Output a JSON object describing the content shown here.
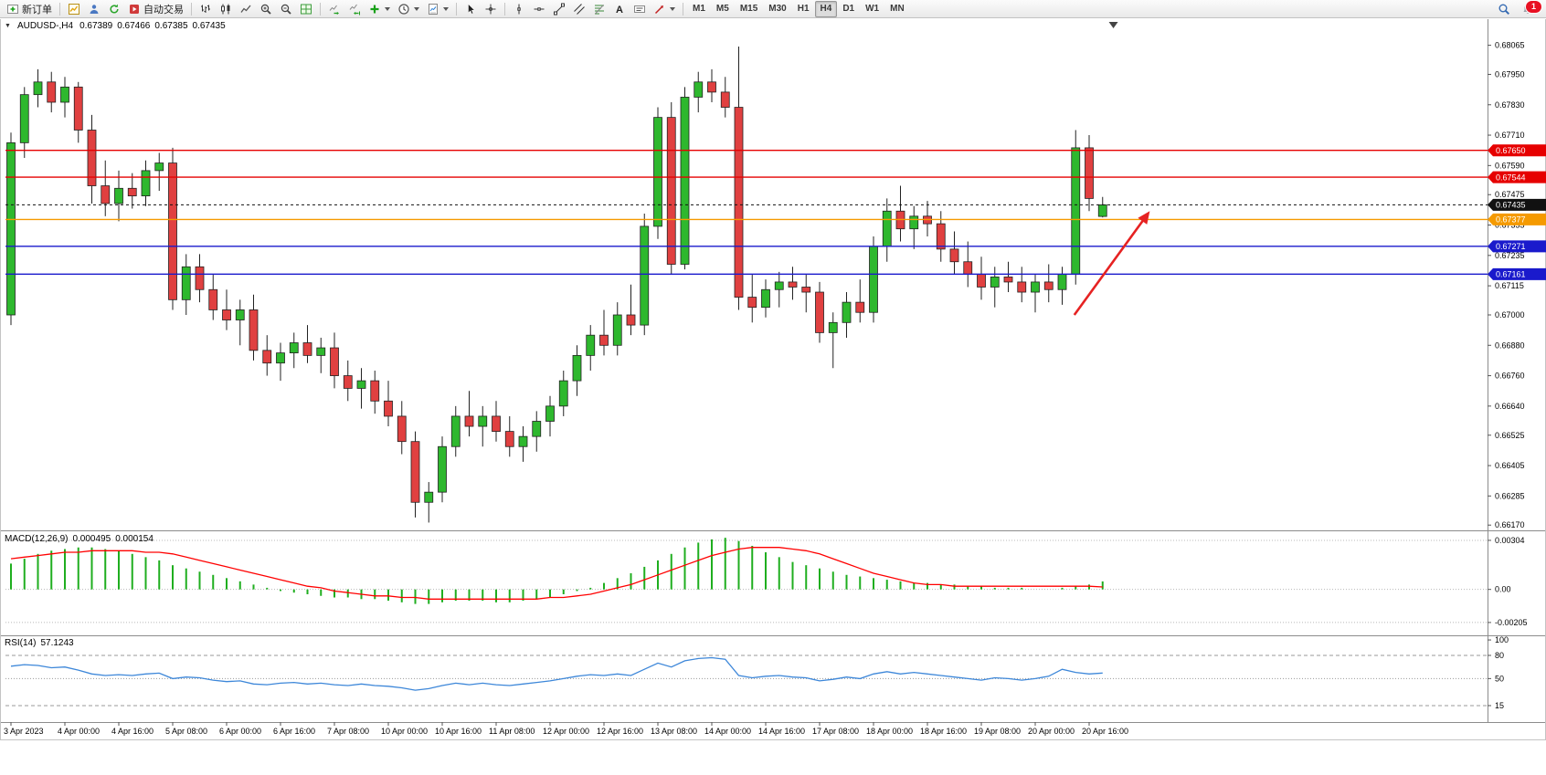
{
  "toolbar": {
    "new_order_label": "新订单",
    "auto_trading_label": "自动交易",
    "timeframes": [
      "M1",
      "M5",
      "M15",
      "M30",
      "H1",
      "H4",
      "D1",
      "W1",
      "MN"
    ],
    "active_timeframe": "H4",
    "notification_count": "1"
  },
  "icons": {
    "collapse_arrow": "▼",
    "text_tool": "A"
  },
  "chart_header": {
    "symbol": "AUDUSD-,H4",
    "open": "0.67389",
    "high": "0.67466",
    "low": "0.67385",
    "close": "0.67435"
  },
  "macd_panel": {
    "label": "MACD(12,26,9)",
    "value_main": "0.000495",
    "value_signal": "0.000154"
  },
  "rsi_panel": {
    "label": "RSI(14)",
    "value": "57.1243"
  },
  "chart_data": {
    "type": "candlestick",
    "symbol": "AUDUSD-",
    "timeframe": "H4",
    "ylim": [
      0.6616,
      0.6815
    ],
    "y_ticks": [
      "0.68065",
      "0.67950",
      "0.67830",
      "0.67710",
      "0.67590",
      "0.67475",
      "0.67355",
      "0.67235",
      "0.67115",
      "0.67000",
      "0.66880",
      "0.66760",
      "0.66640",
      "0.66525",
      "0.66405",
      "0.66285",
      "0.66170"
    ],
    "x_labels": [
      "3 Apr 2023",
      "4 Apr 00:00",
      "4 Apr 16:00",
      "5 Apr 08:00",
      "6 Apr 00:00",
      "6 Apr 16:00",
      "7 Apr 08:00",
      "10 Apr 00:00",
      "10 Apr 16:00",
      "11 Apr 08:00",
      "12 Apr 00:00",
      "12 Apr 16:00",
      "13 Apr 08:00",
      "14 Apr 00:00",
      "14 Apr 16:00",
      "17 Apr 08:00",
      "18 Apr 00:00",
      "18 Apr 16:00",
      "19 Apr 08:00",
      "20 Apr 00:00",
      "20 Apr 16:00"
    ],
    "x_label_step": 4,
    "colors": {
      "bull": "#2eb82e",
      "bear": "#e04040",
      "outline": "#222222",
      "macd_hist": "#1fae1f",
      "macd_signal": "#ff0000",
      "rsi": "#3d87d9",
      "arrow": "#e62222"
    },
    "candles": [
      [
        0.67,
        0.6772,
        0.6696,
        0.6768
      ],
      [
        0.6768,
        0.679,
        0.6762,
        0.6787
      ],
      [
        0.6787,
        0.6797,
        0.6782,
        0.6792
      ],
      [
        0.6792,
        0.6796,
        0.678,
        0.6784
      ],
      [
        0.6784,
        0.6794,
        0.6778,
        0.679
      ],
      [
        0.679,
        0.6792,
        0.6768,
        0.6773
      ],
      [
        0.6773,
        0.6779,
        0.6744,
        0.6751
      ],
      [
        0.6751,
        0.6761,
        0.6739,
        0.6744
      ],
      [
        0.6744,
        0.6757,
        0.6737,
        0.675
      ],
      [
        0.675,
        0.6756,
        0.6742,
        0.6747
      ],
      [
        0.6747,
        0.6761,
        0.6743,
        0.6757
      ],
      [
        0.6757,
        0.6764,
        0.6749,
        0.676
      ],
      [
        0.676,
        0.6766,
        0.6702,
        0.6706
      ],
      [
        0.6706,
        0.6724,
        0.67,
        0.6719
      ],
      [
        0.6719,
        0.6724,
        0.6705,
        0.671
      ],
      [
        0.671,
        0.6716,
        0.6698,
        0.6702
      ],
      [
        0.6702,
        0.671,
        0.6694,
        0.6698
      ],
      [
        0.6698,
        0.6706,
        0.6688,
        0.6702
      ],
      [
        0.6702,
        0.6708,
        0.6682,
        0.6686
      ],
      [
        0.6686,
        0.6692,
        0.6676,
        0.6681
      ],
      [
        0.6681,
        0.6689,
        0.6674,
        0.6685
      ],
      [
        0.6685,
        0.6693,
        0.6679,
        0.6689
      ],
      [
        0.6689,
        0.6696,
        0.6681,
        0.6684
      ],
      [
        0.6684,
        0.6691,
        0.6677,
        0.6687
      ],
      [
        0.6687,
        0.6693,
        0.6671,
        0.6676
      ],
      [
        0.6676,
        0.6682,
        0.6666,
        0.6671
      ],
      [
        0.6671,
        0.6679,
        0.6663,
        0.6674
      ],
      [
        0.6674,
        0.6678,
        0.6661,
        0.6666
      ],
      [
        0.6666,
        0.6674,
        0.6656,
        0.666
      ],
      [
        0.666,
        0.6666,
        0.6645,
        0.665
      ],
      [
        0.665,
        0.6654,
        0.662,
        0.6626
      ],
      [
        0.6626,
        0.6634,
        0.6618,
        0.663
      ],
      [
        0.663,
        0.6652,
        0.6626,
        0.6648
      ],
      [
        0.6648,
        0.6664,
        0.6644,
        0.666
      ],
      [
        0.666,
        0.667,
        0.6652,
        0.6656
      ],
      [
        0.6656,
        0.6664,
        0.6648,
        0.666
      ],
      [
        0.666,
        0.6666,
        0.665,
        0.6654
      ],
      [
        0.6654,
        0.666,
        0.6644,
        0.6648
      ],
      [
        0.6648,
        0.6656,
        0.6642,
        0.6652
      ],
      [
        0.6652,
        0.6662,
        0.6646,
        0.6658
      ],
      [
        0.6658,
        0.6668,
        0.6652,
        0.6664
      ],
      [
        0.6664,
        0.6678,
        0.666,
        0.6674
      ],
      [
        0.6674,
        0.6688,
        0.6668,
        0.6684
      ],
      [
        0.6684,
        0.6696,
        0.6678,
        0.6692
      ],
      [
        0.6692,
        0.6702,
        0.6684,
        0.6688
      ],
      [
        0.6688,
        0.6705,
        0.6684,
        0.67
      ],
      [
        0.67,
        0.6712,
        0.6692,
        0.6696
      ],
      [
        0.6696,
        0.674,
        0.6692,
        0.6735
      ],
      [
        0.6735,
        0.6782,
        0.673,
        0.6778
      ],
      [
        0.6778,
        0.6784,
        0.6716,
        0.672
      ],
      [
        0.672,
        0.679,
        0.6718,
        0.6786
      ],
      [
        0.6786,
        0.6796,
        0.678,
        0.6792
      ],
      [
        0.6792,
        0.6797,
        0.6784,
        0.6788
      ],
      [
        0.6788,
        0.6794,
        0.6778,
        0.6782
      ],
      [
        0.6782,
        0.6806,
        0.6702,
        0.6707
      ],
      [
        0.6707,
        0.6716,
        0.6697,
        0.6703
      ],
      [
        0.6703,
        0.6714,
        0.6699,
        0.671
      ],
      [
        0.671,
        0.6717,
        0.6703,
        0.6713
      ],
      [
        0.6713,
        0.6719,
        0.6706,
        0.6711
      ],
      [
        0.6711,
        0.6716,
        0.6701,
        0.6709
      ],
      [
        0.6709,
        0.6713,
        0.6689,
        0.6693
      ],
      [
        0.6693,
        0.6701,
        0.6679,
        0.6697
      ],
      [
        0.6697,
        0.6709,
        0.6691,
        0.6705
      ],
      [
        0.6705,
        0.6714,
        0.6697,
        0.6701
      ],
      [
        0.6701,
        0.6731,
        0.6697,
        0.6727
      ],
      [
        0.6727,
        0.6746,
        0.6721,
        0.6741
      ],
      [
        0.6741,
        0.6751,
        0.6729,
        0.6734
      ],
      [
        0.6734,
        0.6743,
        0.6726,
        0.6739
      ],
      [
        0.6739,
        0.6745,
        0.6731,
        0.6736
      ],
      [
        0.6736,
        0.6741,
        0.6721,
        0.6726
      ],
      [
        0.6726,
        0.6733,
        0.6716,
        0.6721
      ],
      [
        0.6721,
        0.6729,
        0.6711,
        0.6716
      ],
      [
        0.6716,
        0.6723,
        0.6706,
        0.6711
      ],
      [
        0.6711,
        0.6719,
        0.6703,
        0.6715
      ],
      [
        0.6715,
        0.6721,
        0.6709,
        0.6713
      ],
      [
        0.6713,
        0.6719,
        0.6705,
        0.6709
      ],
      [
        0.6709,
        0.6716,
        0.6701,
        0.6713
      ],
      [
        0.6713,
        0.672,
        0.6705,
        0.671
      ],
      [
        0.671,
        0.6719,
        0.6704,
        0.6716
      ],
      [
        0.6716,
        0.6773,
        0.6712,
        0.6766
      ],
      [
        0.6766,
        0.6771,
        0.6741,
        0.6746
      ],
      [
        0.67389,
        0.67466,
        0.67385,
        0.67435
      ]
    ],
    "hlines": [
      {
        "price": 0.6765,
        "color": "#e60000",
        "label": "0.67650",
        "style": "solid"
      },
      {
        "price": 0.67544,
        "color": "#e60000",
        "label": "0.67544",
        "style": "solid"
      },
      {
        "price": 0.67435,
        "color": "#111111",
        "label": "0.67435",
        "style": "current"
      },
      {
        "price": 0.67377,
        "color": "#f59a00",
        "label": "0.67377",
        "style": "solid"
      },
      {
        "price": 0.67271,
        "color": "#1a1acc",
        "label": "0.67271",
        "style": "solid"
      },
      {
        "price": 0.67161,
        "color": "#1a1acc",
        "label": "0.67161",
        "style": "solid"
      }
    ],
    "arrow": {
      "from": {
        "index": 78.9,
        "price": 0.67
      },
      "to": {
        "index": 84.5,
        "price": 0.6741
      }
    },
    "shift_marker_index": 81.8,
    "macd": {
      "label": "MACD(12,26,9)",
      "y_ticks": [
        {
          "v": 0.00304,
          "label": "0.00304"
        },
        {
          "v": 0,
          "label": "0.00"
        },
        {
          "v": -0.00205,
          "label": "-0.00205"
        }
      ],
      "ylim": [
        -0.00279,
        0.00349
      ],
      "histogram": [
        0.0016,
        0.0019,
        0.0022,
        0.0024,
        0.0025,
        0.0026,
        0.0026,
        0.0025,
        0.0024,
        0.0022,
        0.002,
        0.0018,
        0.0015,
        0.0013,
        0.0011,
        0.0009,
        0.0007,
        0.0005,
        0.0003,
        0.0001,
        -0.0001,
        -0.0002,
        -0.0003,
        -0.0004,
        -0.0005,
        -0.0005,
        -0.0006,
        -0.0006,
        -0.0007,
        -0.0008,
        -0.0009,
        -0.0009,
        -0.0008,
        -0.0007,
        -0.0007,
        -0.0007,
        -0.0008,
        -0.0008,
        -0.0007,
        -0.0006,
        -0.0005,
        -0.0003,
        -0.0001,
        0.0001,
        0.0004,
        0.0007,
        0.001,
        0.0014,
        0.0018,
        0.0022,
        0.0026,
        0.0029,
        0.0031,
        0.0032,
        0.003,
        0.0027,
        0.0023,
        0.002,
        0.0017,
        0.0015,
        0.0013,
        0.0011,
        0.0009,
        0.0008,
        0.0007,
        0.0006,
        0.0005,
        0.0004,
        0.0004,
        0.0003,
        0.0003,
        0.0002,
        0.0002,
        0.0001,
        0.0001,
        0.0001,
        0,
        0,
        0.0001,
        0.0002,
        0.0003,
        0.000495
      ],
      "signal": [
        0.0019,
        0.002,
        0.0021,
        0.0022,
        0.0023,
        0.0023,
        0.0024,
        0.0024,
        0.0024,
        0.0024,
        0.0023,
        0.0023,
        0.0022,
        0.002,
        0.0018,
        0.0016,
        0.0014,
        0.0012,
        0.001,
        0.0008,
        0.0006,
        0.0004,
        0.0002,
        0.0001,
        -0.0001,
        -0.0002,
        -0.0003,
        -0.0004,
        -0.0004,
        -0.0005,
        -0.0005,
        -0.0006,
        -0.0006,
        -0.0006,
        -0.0006,
        -0.0006,
        -0.0006,
        -0.0006,
        -0.0006,
        -0.0006,
        -0.0005,
        -0.0005,
        -0.0004,
        -0.0003,
        -0.0001,
        0.0001,
        0.0003,
        0.0006,
        0.0009,
        0.0012,
        0.0015,
        0.0018,
        0.0021,
        0.0023,
        0.0025,
        0.0026,
        0.0026,
        0.0026,
        0.0025,
        0.0024,
        0.0022,
        0.0019,
        0.0016,
        0.0013,
        0.001,
        0.0008,
        0.0006,
        0.0004,
        0.0003,
        0.0003,
        0.0002,
        0.0002,
        0.0002,
        0.0002,
        0.0002,
        0.0002,
        0.0002,
        0.0002,
        0.0002,
        0.0002,
        0.0002,
        0.000154
      ]
    },
    "rsi": {
      "label": "RSI(14)",
      "ylim": [
        -6.3,
        104.8
      ],
      "y_ticks": [
        {
          "v": 100,
          "label": "100"
        },
        {
          "v": 80,
          "label": "80"
        },
        {
          "v": 50,
          "label": "50"
        },
        {
          "v": 15,
          "label": "15"
        }
      ],
      "levels": [
        {
          "v": 80,
          "dash": "4,3"
        },
        {
          "v": 50,
          "dash": "1,2"
        },
        {
          "v": 15,
          "dash": "4,3"
        }
      ],
      "series": [
        66,
        68,
        67,
        64,
        65,
        61,
        56,
        54,
        55,
        54,
        56,
        57,
        50,
        52,
        51,
        48,
        46,
        47,
        43,
        42,
        44,
        45,
        43,
        44,
        42,
        41,
        43,
        41,
        40,
        38,
        35,
        37,
        41,
        44,
        42,
        44,
        42,
        41,
        43,
        45,
        47,
        50,
        53,
        55,
        54,
        56,
        54,
        62,
        70,
        65,
        73,
        76,
        77,
        75,
        54,
        51,
        53,
        54,
        52,
        51,
        47,
        49,
        52,
        50,
        56,
        59,
        56,
        58,
        56,
        54,
        52,
        50,
        48,
        51,
        50,
        48,
        50,
        53,
        62,
        58,
        56,
        57.1243
      ]
    }
  }
}
